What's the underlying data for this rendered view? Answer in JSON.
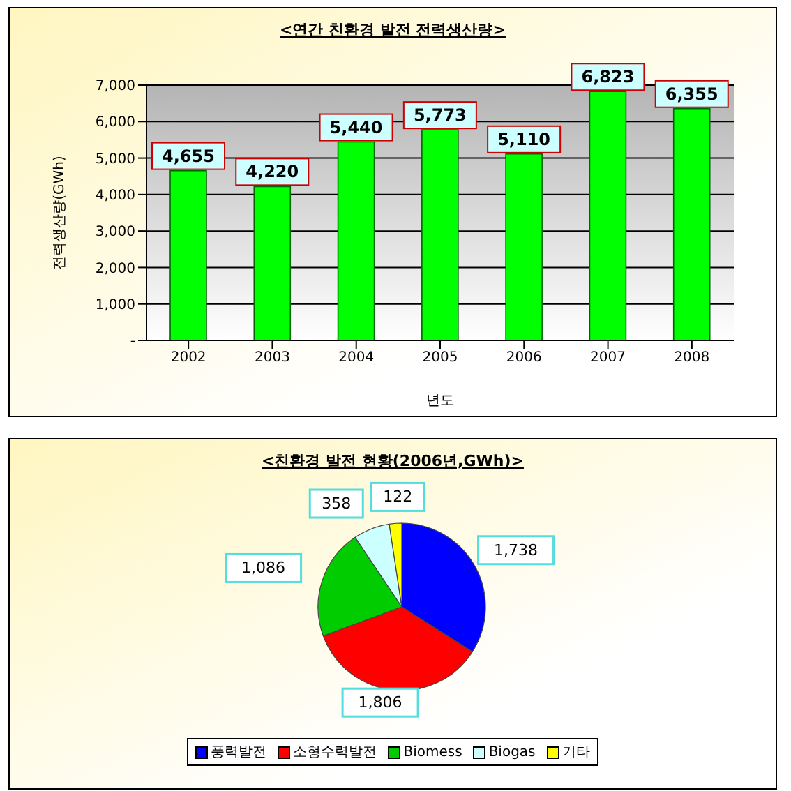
{
  "chart_data": [
    {
      "type": "bar",
      "title": "<연간 친환경 발전 전력생산량>",
      "xlabel": "년도",
      "ylabel": "전력생산량(GWh)",
      "categories": [
        "2002",
        "2003",
        "2004",
        "2005",
        "2006",
        "2007",
        "2008"
      ],
      "values": [
        4655,
        4220,
        5440,
        5773,
        5110,
        6823,
        6355
      ],
      "value_labels": [
        "4,655",
        "4,220",
        "5,440",
        "5,773",
        "5,110",
        "6,823",
        "6,355"
      ],
      "color": "#00ff00",
      "ylim": [
        0,
        7000
      ],
      "yticks": [
        {
          "value": 0,
          "label": "-"
        },
        {
          "value": 1000,
          "label": "1,000"
        },
        {
          "value": 2000,
          "label": "2,000"
        },
        {
          "value": 3000,
          "label": "3,000"
        },
        {
          "value": 4000,
          "label": "4,000"
        },
        {
          "value": 5000,
          "label": "5,000"
        },
        {
          "value": 6000,
          "label": "6,000"
        },
        {
          "value": 7000,
          "label": "7,000"
        }
      ],
      "grid": "y"
    },
    {
      "type": "pie",
      "title": "<친환경 발전 현황(2006년,GWh)>",
      "categories": [
        "풍력발전",
        "소형수력발전",
        "Biomess",
        "Biogas",
        "기타"
      ],
      "values": [
        1738,
        1806,
        1086,
        358,
        122
      ],
      "value_labels": [
        "1,738",
        "1,806",
        "1,086",
        "358",
        "122"
      ],
      "colors": [
        "#0000ff",
        "#ff0000",
        "#00cc00",
        "#ccffff",
        "#ffff00"
      ],
      "legend": "bottom"
    }
  ]
}
